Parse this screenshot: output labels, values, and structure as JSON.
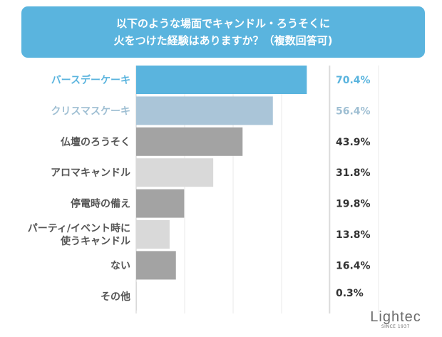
{
  "header": {
    "line1": "以下のような場面でキャンドル・ろうそくに",
    "line2": "火をつけた経験はありますか？（複数回答可)"
  },
  "colors": {
    "header_bg": "#5ab4de",
    "highlight_text": "#5ab4de",
    "secondary_text": "#9fbfd3",
    "dark_bar": "#a3a3a3",
    "light_bar": "#d9d9d9"
  },
  "chart_data": {
    "type": "bar",
    "orientation": "horizontal",
    "title": "以下のような場面でキャンドル・ろうそくに火をつけた経験はありますか？（複数回答可)",
    "unit": "%",
    "xlim": [
      0,
      100
    ],
    "categories": [
      "バースデーケーキ",
      "クリスマスケーキ",
      "仏壇のろうそく",
      "アロマキャンドル",
      "停電時の備え",
      "パーティ/イベント時に使うキャンドル",
      "ない",
      "その他"
    ],
    "values": [
      70.4,
      56.4,
      43.9,
      31.8,
      19.8,
      13.8,
      16.4,
      0.3
    ],
    "value_labels": [
      "70.4%",
      "56.4%",
      "43.9%",
      "31.8%",
      "19.8%",
      "13.8%",
      "16.4%",
      "0.3%"
    ],
    "bar_colors": [
      "#5ab4de",
      "#aac5d8",
      "#a3a3a3",
      "#d9d9d9",
      "#a3a3a3",
      "#d9d9d9",
      "#a3a3a3",
      "#d9d9d9"
    ],
    "label_colors": [
      "#5ab4de",
      "#9fbfd3",
      "#555555",
      "#555555",
      "#555555",
      "#555555",
      "#555555",
      "#555555"
    ],
    "value_colors": [
      "#5ab4de",
      "#9fbfd3",
      "#333333",
      "#333333",
      "#333333",
      "#333333",
      "#333333",
      "#333333"
    ]
  },
  "logo": {
    "word": "Lightec",
    "tagline": "SINCE 1937"
  }
}
